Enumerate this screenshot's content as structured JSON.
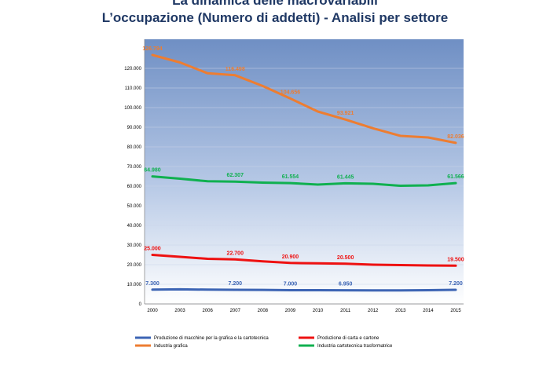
{
  "header": {
    "title_line1": "La dinamica delle macrovariabili",
    "title_line2": "L’occupazione (Numero di addetti) - Analisi per settore"
  },
  "chart_data": {
    "type": "line",
    "title": "L’occupazione (Numero di addetti) - Analisi per settore",
    "categories": [
      "2000",
      "2003",
      "2006",
      "2007",
      "2008",
      "2009",
      "2010",
      "2011",
      "2012",
      "2013",
      "2014",
      "2015"
    ],
    "ylim": [
      0,
      130000
    ],
    "yticks": [
      0,
      10000,
      20000,
      30000,
      40000,
      50000,
      60000,
      70000,
      80000,
      90000,
      100000,
      110000,
      120000
    ],
    "ytick_labels": [
      "0",
      "10.000",
      "20.000",
      "30.000",
      "40.000",
      "50.000",
      "60.000",
      "70.000",
      "80.000",
      "90.000",
      "100.000",
      "110.000",
      "120.000"
    ],
    "grid": true,
    "legend_position": "bottom",
    "series": [
      {
        "name": "Produzione di macchine per la grafica e la cartotecnica",
        "color": "#3c64b4",
        "values": [
          7300,
          7450,
          7300,
          7200,
          7150,
          7000,
          7000,
          6950,
          6900,
          6900,
          7000,
          7200
        ],
        "labels": [
          {
            "index": 0,
            "text": "7.300"
          },
          {
            "index": 3,
            "text": "7.200"
          },
          {
            "index": 5,
            "text": "7.000"
          },
          {
            "index": 7,
            "text": "6.950"
          },
          {
            "index": 11,
            "text": "7.200"
          }
        ]
      },
      {
        "name": "Produzione di carta e cartone",
        "color": "#ee1111",
        "values": [
          25000,
          24000,
          23000,
          22700,
          21700,
          20900,
          20700,
          20500,
          20000,
          19800,
          19600,
          19500
        ],
        "labels": [
          {
            "index": 0,
            "text": "25.000"
          },
          {
            "index": 3,
            "text": "22.700"
          },
          {
            "index": 5,
            "text": "20.900"
          },
          {
            "index": 7,
            "text": "20.500"
          },
          {
            "index": 11,
            "text": "19.500"
          }
        ]
      },
      {
        "name": "Industria grafica",
        "color": "#ed7d31",
        "values": [
          126794,
          123000,
          117500,
          116498,
          111000,
          104656,
          98000,
          93921,
          89500,
          85600,
          84800,
          82036
        ],
        "labels": [
          {
            "index": 0,
            "text": "126.794"
          },
          {
            "index": 3,
            "text": "116.498"
          },
          {
            "index": 5,
            "text": "104.656"
          },
          {
            "index": 7,
            "text": "93.921"
          },
          {
            "index": 11,
            "text": "82.036"
          }
        ]
      },
      {
        "name": "Industria cartotecnica trasformatrice",
        "color": "#10b050",
        "values": [
          64980,
          63800,
          62500,
          62307,
          61800,
          61554,
          60800,
          61445,
          61200,
          60200,
          60400,
          61566
        ],
        "labels": [
          {
            "index": 0,
            "text": "64.980"
          },
          {
            "index": 3,
            "text": "62.307"
          },
          {
            "index": 5,
            "text": "61.554"
          },
          {
            "index": 7,
            "text": "61.445"
          },
          {
            "index": 11,
            "text": "61.566"
          }
        ]
      }
    ]
  }
}
